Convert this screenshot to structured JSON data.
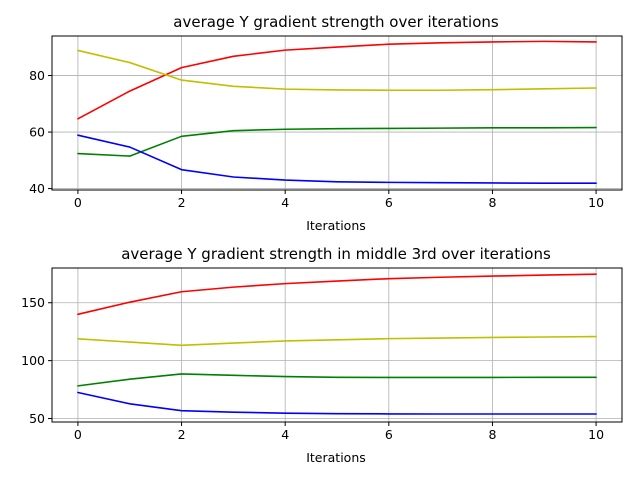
{
  "chart_data": [
    {
      "type": "line",
      "title": "average Y gradient strength over iterations",
      "xlabel": "Iterations",
      "ylabel": "",
      "x": [
        0,
        1,
        2,
        3,
        4,
        5,
        6,
        7,
        8,
        9,
        10
      ],
      "xlim": [
        -0.5,
        10.5
      ],
      "ylim": [
        39.5,
        94
      ],
      "xticks": [
        0,
        2,
        4,
        6,
        8,
        10
      ],
      "yticks": [
        40,
        60,
        80
      ],
      "grid": true,
      "series": [
        {
          "color": "#ff0000",
          "values": [
            64.7,
            74.5,
            82.8,
            86.8,
            89.0,
            90.1,
            91.1,
            91.6,
            91.9,
            92.1,
            91.9
          ]
        },
        {
          "color": "#c0bf00",
          "values": [
            88.9,
            84.6,
            78.4,
            76.2,
            75.2,
            74.9,
            74.8,
            74.8,
            75.0,
            75.3,
            75.6
          ]
        },
        {
          "color": "#008000",
          "values": [
            52.4,
            51.5,
            58.5,
            60.5,
            61.0,
            61.2,
            61.3,
            61.4,
            61.5,
            61.5,
            61.6
          ]
        },
        {
          "color": "#0000ff",
          "values": [
            58.9,
            54.7,
            46.7,
            44.1,
            43.0,
            42.4,
            42.2,
            42.1,
            42.0,
            41.9,
            41.9
          ]
        }
      ]
    },
    {
      "type": "line",
      "title": "average Y gradient strength in middle 3rd over iterations",
      "xlabel": "Iterations",
      "ylabel": "",
      "x": [
        0,
        1,
        2,
        3,
        4,
        5,
        6,
        7,
        8,
        9,
        10
      ],
      "xlim": [
        -0.5,
        10.5
      ],
      "ylim": [
        47,
        180
      ],
      "xticks": [
        0,
        2,
        4,
        6,
        8,
        10
      ],
      "yticks": [
        50,
        100,
        150
      ],
      "grid": true,
      "series": [
        {
          "color": "#ff0000",
          "values": [
            140.0,
            150.5,
            159.5,
            163.5,
            166.5,
            168.7,
            170.8,
            172.0,
            173.0,
            173.9,
            174.7
          ]
        },
        {
          "color": "#c0bf00",
          "values": [
            118.8,
            116.0,
            113.2,
            115.2,
            117.0,
            118.0,
            119.0,
            119.5,
            120.0,
            120.4,
            120.8
          ]
        },
        {
          "color": "#008000",
          "values": [
            78.2,
            84.0,
            88.5,
            87.3,
            86.2,
            85.6,
            85.5,
            85.5,
            85.5,
            85.6,
            85.6
          ]
        },
        {
          "color": "#0000ff",
          "values": [
            72.5,
            62.7,
            56.8,
            55.5,
            54.6,
            54.2,
            54.0,
            53.9,
            53.9,
            53.9,
            53.9
          ]
        }
      ]
    }
  ]
}
